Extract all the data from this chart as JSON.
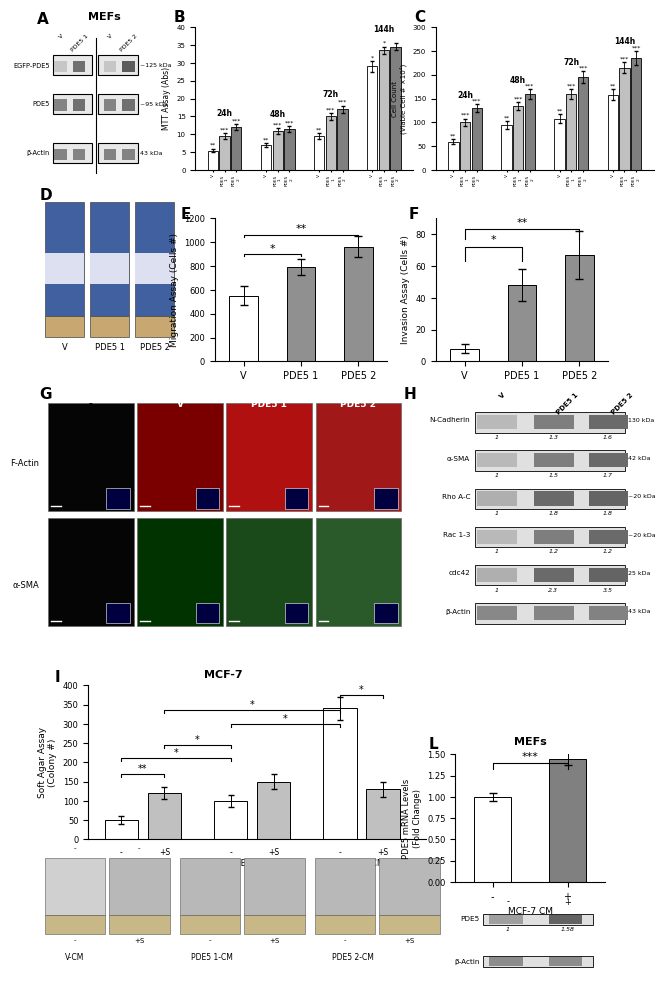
{
  "panel_A": {
    "title": "MEFs",
    "band_labels": [
      "EGFP-PDE5",
      "PDE5",
      "β-Actin"
    ],
    "kda_labels": [
      "~125 kDa",
      "~95 kDa",
      "43 kDa"
    ],
    "lanes": [
      "V",
      "PDE5 1",
      "V",
      "PDE5 2"
    ]
  },
  "panel_B": {
    "ylabel": "MTT Assay (Abs)",
    "timepoints": [
      "24h",
      "48h",
      "72h",
      "144h"
    ],
    "groups": [
      "V",
      "PDE5 1",
      "PDE5 2"
    ],
    "values": {
      "24h": [
        5.5,
        9.5,
        12.0
      ],
      "48h": [
        7.0,
        11.0,
        11.5
      ],
      "72h": [
        9.5,
        15.0,
        17.0
      ],
      "144h": [
        29.0,
        33.5,
        34.5
      ]
    },
    "errors": {
      "24h": [
        0.5,
        0.8,
        0.8
      ],
      "48h": [
        0.5,
        0.8,
        0.8
      ],
      "72h": [
        0.8,
        1.0,
        1.0
      ],
      "144h": [
        1.5,
        1.0,
        1.0
      ]
    },
    "sig": {
      "24h": [
        "**",
        "***",
        "***"
      ],
      "48h": [
        "**",
        "***",
        "***"
      ],
      "72h": [
        "**",
        "***",
        "***"
      ],
      "144h": [
        "*",
        "*",
        ""
      ]
    },
    "ylim": [
      0,
      40
    ]
  },
  "panel_C": {
    "ylabel": "Cell Count\n(Viable Cell # ×10⁴)",
    "timepoints": [
      "24h",
      "48h",
      "72h",
      "144h"
    ],
    "groups": [
      "V",
      "PDE5 1",
      "PDE5 2"
    ],
    "values": {
      "24h": [
        60,
        100,
        130
      ],
      "48h": [
        95,
        135,
        160
      ],
      "72h": [
        108,
        160,
        195
      ],
      "144h": [
        158,
        215,
        235
      ]
    },
    "errors": {
      "24h": [
        5,
        8,
        8
      ],
      "48h": [
        8,
        8,
        10
      ],
      "72h": [
        10,
        10,
        12
      ],
      "144h": [
        12,
        12,
        15
      ]
    },
    "sig": {
      "24h": [
        "**",
        "***",
        "***"
      ],
      "48h": [
        "**",
        "***",
        "***"
      ],
      "72h": [
        "**",
        "***",
        "***"
      ],
      "144h": [
        "**",
        "***",
        "***"
      ]
    },
    "ylim": [
      0,
      300
    ]
  },
  "panel_E": {
    "ylabel": "Migration Assay (Cells #)",
    "categories": [
      "V",
      "PDE5 1",
      "PDE5 2"
    ],
    "values": [
      550,
      790,
      960
    ],
    "errors": [
      80,
      70,
      90
    ],
    "ylim": [
      0,
      1200
    ]
  },
  "panel_F": {
    "ylabel": "Invasion Assay (Cells #)",
    "categories": [
      "V",
      "PDE5 1",
      "PDE5 2"
    ],
    "values": [
      8,
      48,
      67
    ],
    "errors": [
      3,
      10,
      15
    ],
    "ylim": [
      0,
      90
    ]
  },
  "panel_G": {
    "cond_labels": [
      "-",
      "V",
      "PDE5 1",
      "PDE5 2"
    ],
    "row_labels": [
      "F-Actin",
      "α-SMA"
    ]
  },
  "panel_H": {
    "antibodies": [
      "N-Cadherin",
      "α-SMA",
      "Rho A-C",
      "Rac 1-3",
      "cdc42",
      "β-Actin"
    ],
    "kda": [
      "130 kDa",
      "42 kDa",
      "~20 kDa",
      "~20 kDa",
      "25 kDa",
      "43 kDa"
    ],
    "numbers": [
      [
        "1",
        "1.3",
        "1.6"
      ],
      [
        "1",
        "1.5",
        "1.7"
      ],
      [
        "1",
        "1.8",
        "1.8"
      ],
      [
        "1",
        "1.2",
        "1.2"
      ],
      [
        "1",
        "2.3",
        "3.5"
      ],
      [
        "",
        "",
        ""
      ]
    ],
    "lanes": [
      "V",
      "PDE5 1",
      "PDE5 2"
    ]
  },
  "panel_I": {
    "title": "MCF-7",
    "ylabel": "Soft Agar Assay\n(Colony #)",
    "categories": [
      "-",
      "+S",
      "-",
      "+S",
      "-",
      "+S"
    ],
    "group_labels": [
      "V-CM",
      "PDE5 1-CM",
      "PDE5 2-CM"
    ],
    "values": [
      50,
      120,
      100,
      150,
      340,
      130
    ],
    "errors": [
      10,
      15,
      15,
      20,
      30,
      20
    ],
    "ylim": [
      0,
      400
    ]
  },
  "panel_L": {
    "title": "MEFs",
    "ylabel": "PDE5 mRNA Levels\n(Fold Change)",
    "categories": [
      "-",
      "+"
    ],
    "xlabel": "MCF-7 CM",
    "values": [
      1.0,
      1.45
    ],
    "errors": [
      0.05,
      0.08
    ],
    "ylim": [
      0,
      1.5
    ],
    "sig": "***",
    "wb_labels": [
      "PDE5",
      "β-Actin"
    ],
    "wb_numbers": [
      [
        "1",
        "1.58"
      ],
      [
        "",
        ""
      ]
    ]
  }
}
